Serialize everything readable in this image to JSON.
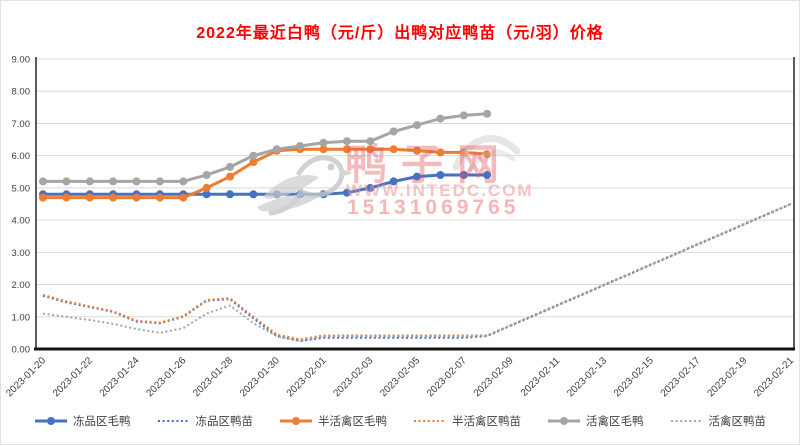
{
  "window": {
    "background": "#ffffff"
  },
  "watermark": {
    "site_name": "鸭子网",
    "url": "WWW.INTEDC.COM",
    "phone": "15131069765",
    "logo": "duck-logo",
    "text_color": "#e25858",
    "logo_color": "#c6c6c6"
  },
  "chart_data": {
    "type": "line",
    "title": "2022年最近白鸭（元/斤）出鸭对应鸭苗（元/羽）价格",
    "title_color": "#ff0000",
    "xlabel": "",
    "ylabel": "",
    "ylim": [
      0,
      9
    ],
    "y_tick_labels": [
      "0.00",
      "1.00",
      "2.00",
      "3.00",
      "4.00",
      "5.00",
      "6.00",
      "7.00",
      "8.00",
      "9.00"
    ],
    "grid": true,
    "gridline_color": "#d9d9d9",
    "axis_text_color": "#404040",
    "legend_position": "bottom",
    "x": [
      "2023-01-20",
      "2023-01-21",
      "2023-01-22",
      "2023-01-23",
      "2023-01-24",
      "2023-01-25",
      "2023-01-26",
      "2023-01-27",
      "2023-01-28",
      "2023-01-29",
      "2023-01-30",
      "2023-01-31",
      "2023-02-01",
      "2023-02-02",
      "2023-02-03",
      "2023-02-04",
      "2023-02-05",
      "2023-02-06",
      "2023-02-07",
      "2023-02-08",
      "2023-02-09",
      "2023-02-10",
      "2023-02-11",
      "2023-02-12",
      "2023-02-13",
      "2023-02-14",
      "2023-02-15",
      "2023-02-16",
      "2023-02-17",
      "2023-02-18",
      "2023-02-19",
      "2023-02-20",
      "2023-02-21"
    ],
    "x_tick_step": 2,
    "x_tick_labels": [
      "2023-01-20",
      "2023-01-22",
      "2023-01-24",
      "2023-01-26",
      "2023-01-28",
      "2023-01-30",
      "2023-02-01",
      "2023-02-03",
      "2023-02-05",
      "2023-02-07",
      "2023-02-09",
      "2023-02-11",
      "2023-02-13",
      "2023-02-15",
      "2023-02-17",
      "2023-02-19",
      "2023-02-21"
    ],
    "series": [
      {
        "name": "冻品区毛鸭",
        "color": "#4472C4",
        "line_style": "solid",
        "marker": true,
        "values": [
          4.8,
          4.8,
          4.8,
          4.8,
          4.8,
          4.8,
          4.8,
          4.8,
          4.8,
          4.8,
          4.8,
          4.8,
          4.8,
          4.85,
          5.0,
          5.2,
          5.35,
          5.4,
          5.4,
          5.4,
          null,
          null,
          null,
          null,
          null,
          null,
          null,
          null,
          null,
          null,
          null,
          null,
          null
        ]
      },
      {
        "name": "冻品区鸭苗",
        "color": "#4472C4",
        "line_style": "dotted",
        "marker": false,
        "values": [
          1.65,
          1.45,
          1.3,
          1.15,
          0.85,
          0.8,
          1.0,
          1.5,
          1.55,
          0.95,
          0.4,
          0.25,
          0.35,
          0.35,
          0.35,
          0.35,
          0.35,
          0.35,
          0.35,
          0.4,
          0.72,
          1.03,
          1.35,
          1.66,
          1.98,
          2.29,
          2.61,
          2.92,
          3.24,
          3.55,
          3.87,
          4.18,
          4.5
        ]
      },
      {
        "name": "半活禽区毛鸭",
        "color": "#ED7D31",
        "line_style": "solid",
        "marker": true,
        "values": [
          4.7,
          4.7,
          4.7,
          4.7,
          4.7,
          4.7,
          4.7,
          5.0,
          5.35,
          5.8,
          6.15,
          6.2,
          6.2,
          6.2,
          6.2,
          6.2,
          6.15,
          6.1,
          6.1,
          6.05,
          null,
          null,
          null,
          null,
          null,
          null,
          null,
          null,
          null,
          null,
          null,
          null,
          null
        ]
      },
      {
        "name": "半活禽区鸭苗",
        "color": "#ED7D31",
        "line_style": "dotted",
        "marker": false,
        "values": [
          1.68,
          1.48,
          1.32,
          1.17,
          0.88,
          0.82,
          1.02,
          1.52,
          1.58,
          1.0,
          0.45,
          0.3,
          0.42,
          0.42,
          0.42,
          0.42,
          0.42,
          0.42,
          0.42,
          0.42,
          0.74,
          1.05,
          1.37,
          1.68,
          2.0,
          2.31,
          2.63,
          2.94,
          3.26,
          3.57,
          3.89,
          4.2,
          4.5
        ]
      },
      {
        "name": "活禽区毛鸭",
        "color": "#A5A5A5",
        "line_style": "solid",
        "marker": true,
        "values": [
          5.2,
          5.2,
          5.2,
          5.2,
          5.2,
          5.2,
          5.2,
          5.4,
          5.65,
          6.0,
          6.2,
          6.3,
          6.4,
          6.45,
          6.45,
          6.75,
          6.95,
          7.15,
          7.25,
          7.3,
          null,
          null,
          null,
          null,
          null,
          null,
          null,
          null,
          null,
          null,
          null,
          null,
          null
        ]
      },
      {
        "name": "活禽区鸭苗",
        "color": "#A5A5A5",
        "line_style": "dotted",
        "marker": false,
        "values": [
          1.1,
          1.0,
          0.9,
          0.78,
          0.62,
          0.5,
          0.65,
          1.1,
          1.35,
          0.8,
          0.4,
          0.25,
          0.4,
          0.4,
          0.4,
          0.4,
          0.4,
          0.4,
          0.4,
          0.42,
          0.73,
          1.05,
          1.36,
          1.68,
          1.99,
          2.3,
          2.62,
          2.93,
          3.25,
          3.56,
          3.88,
          4.19,
          4.5
        ]
      }
    ]
  }
}
